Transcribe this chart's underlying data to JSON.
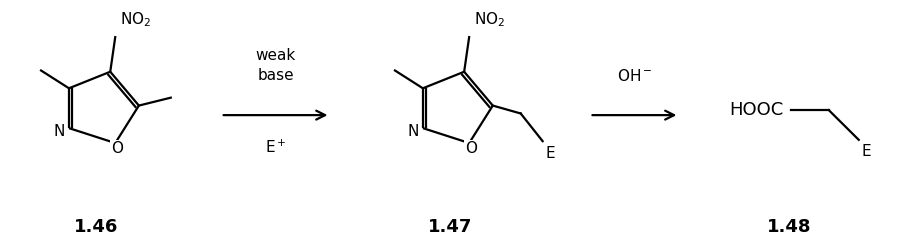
{
  "bg_color": "#ffffff",
  "text_color": "#000000",
  "fig_width": 9.1,
  "fig_height": 2.52,
  "dpi": 100,
  "label_146": "1.46",
  "label_147": "1.47",
  "label_148": "1.48",
  "arrow1_label_line1": "weak",
  "arrow1_label_line2": "base",
  "arrow1_label_bot": "E+",
  "arrow2_label": "OH-",
  "lw": 1.6,
  "fs_chem": 11,
  "fs_label": 13
}
